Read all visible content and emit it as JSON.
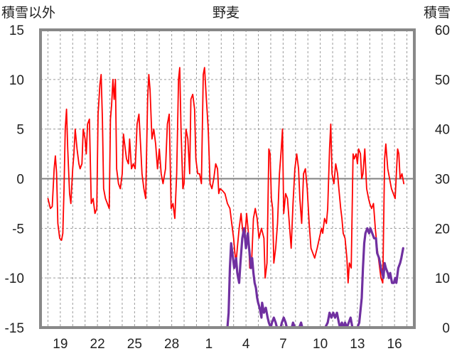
{
  "chart_data": {
    "type": "line",
    "title": "野麦",
    "left_axis_label": "積雪以外",
    "right_axis_label": "積雪",
    "left_ylim": [
      -15,
      15
    ],
    "left_yticks": [
      15,
      10,
      5,
      0,
      -5,
      -10,
      -15
    ],
    "right_ylim": [
      0,
      60
    ],
    "right_yticks": [
      60,
      50,
      40,
      30,
      20,
      10,
      0
    ],
    "x_ticks": [
      {
        "day": 1,
        "label": "19"
      },
      {
        "day": 4,
        "label": "22"
      },
      {
        "day": 7,
        "label": "25"
      },
      {
        "day": 10,
        "label": "28"
      },
      {
        "day": 13,
        "label": "1"
      },
      {
        "day": 16,
        "label": "4"
      },
      {
        "day": 19,
        "label": "7"
      },
      {
        "day": 22,
        "label": "10"
      },
      {
        "day": 25,
        "label": "13"
      },
      {
        "day": 28,
        "label": "16"
      }
    ],
    "xlim": [
      -0.6,
      29.6
    ],
    "grid": "vertical dashed daily, horizontal dashed at left ticks",
    "series": [
      {
        "axis": "left",
        "color": "#ff0000",
        "points": [
          [
            0.0,
            -2.0
          ],
          [
            0.2,
            -3.0
          ],
          [
            0.35,
            -2.8
          ],
          [
            0.5,
            1.0
          ],
          [
            0.6,
            2.3
          ],
          [
            0.7,
            0.6
          ],
          [
            0.8,
            -4.5
          ],
          [
            0.95,
            -6.0
          ],
          [
            1.1,
            -6.2
          ],
          [
            1.2,
            -5.5
          ],
          [
            1.3,
            -1.0
          ],
          [
            1.4,
            5.0
          ],
          [
            1.5,
            7.0
          ],
          [
            1.6,
            3.0
          ],
          [
            1.75,
            -1.5
          ],
          [
            1.85,
            -2.5
          ],
          [
            2.0,
            1.0
          ],
          [
            2.1,
            2.5
          ],
          [
            2.2,
            5.0
          ],
          [
            2.35,
            3.0
          ],
          [
            2.5,
            1.5
          ],
          [
            2.6,
            1.0
          ],
          [
            2.75,
            1.5
          ],
          [
            2.85,
            5.0
          ],
          [
            3.0,
            4.0
          ],
          [
            3.1,
            2.5
          ],
          [
            3.2,
            5.5
          ],
          [
            3.35,
            6.0
          ],
          [
            3.5,
            -2.5
          ],
          [
            3.65,
            -2.0
          ],
          [
            3.8,
            -3.5
          ],
          [
            3.95,
            -3.0
          ],
          [
            4.05,
            6.5
          ],
          [
            4.2,
            9.5
          ],
          [
            4.3,
            10.5
          ],
          [
            4.4,
            6.0
          ],
          [
            4.5,
            -1.0
          ],
          [
            4.65,
            -2.0
          ],
          [
            4.8,
            -2.5
          ],
          [
            4.95,
            -3.0
          ],
          [
            5.05,
            6.0
          ],
          [
            5.15,
            7.5
          ],
          [
            5.25,
            10.0
          ],
          [
            5.35,
            8.0
          ],
          [
            5.45,
            10.0
          ],
          [
            5.55,
            1.0
          ],
          [
            5.7,
            -0.5
          ],
          [
            5.85,
            -1.0
          ],
          [
            6.0,
            0.5
          ],
          [
            6.1,
            4.5
          ],
          [
            6.2,
            3.5
          ],
          [
            6.35,
            2.0
          ],
          [
            6.5,
            1.5
          ],
          [
            6.6,
            4.0
          ],
          [
            6.75,
            1.0
          ],
          [
            6.9,
            1.5
          ],
          [
            7.05,
            1.0
          ],
          [
            7.2,
            5.5
          ],
          [
            7.35,
            6.5
          ],
          [
            7.5,
            3.0
          ],
          [
            7.6,
            0.5
          ],
          [
            7.75,
            -1.0
          ],
          [
            7.9,
            -2.0
          ],
          [
            8.05,
            8.0
          ],
          [
            8.15,
            10.5
          ],
          [
            8.25,
            9.0
          ],
          [
            8.4,
            4.0
          ],
          [
            8.55,
            5.0
          ],
          [
            8.7,
            3.5
          ],
          [
            8.85,
            1.0
          ],
          [
            9.0,
            3.0
          ],
          [
            9.15,
            0.5
          ],
          [
            9.3,
            -0.5
          ],
          [
            9.5,
            1.0
          ],
          [
            9.65,
            5.5
          ],
          [
            9.8,
            6.5
          ],
          [
            9.95,
            -3.0
          ],
          [
            10.1,
            -2.5
          ],
          [
            10.25,
            -4.0
          ],
          [
            10.4,
            0.5
          ],
          [
            10.55,
            10.0
          ],
          [
            10.65,
            11.2
          ],
          [
            10.75,
            5.0
          ],
          [
            10.9,
            -1.0
          ],
          [
            11.0,
            -0.5
          ],
          [
            11.15,
            5.0
          ],
          [
            11.3,
            4.0
          ],
          [
            11.45,
            0.5
          ],
          [
            11.55,
            8.0
          ],
          [
            11.7,
            8.5
          ],
          [
            11.85,
            7.0
          ],
          [
            11.95,
            2.0
          ],
          [
            12.1,
            0.5
          ],
          [
            12.25,
            0.5
          ],
          [
            12.4,
            -0.5
          ],
          [
            12.55,
            10.5
          ],
          [
            12.65,
            11.2
          ],
          [
            12.8,
            8.0
          ],
          [
            12.95,
            5.0
          ],
          [
            13.1,
            -0.5
          ],
          [
            13.25,
            -1.0
          ],
          [
            13.4,
            0.0
          ],
          [
            13.55,
            1.5
          ],
          [
            13.7,
            1.0
          ],
          [
            13.8,
            -1.5
          ],
          [
            13.9,
            -1.0
          ],
          [
            14.1,
            -1.2
          ],
          [
            14.3,
            -1.5
          ],
          [
            14.5,
            -2.5
          ],
          [
            14.7,
            -3.0
          ],
          [
            14.85,
            -4.5
          ],
          [
            15.0,
            -6.0
          ],
          [
            15.1,
            -7.5
          ],
          [
            15.2,
            -8.5
          ],
          [
            15.3,
            -7.0
          ],
          [
            15.45,
            -5.0
          ],
          [
            15.6,
            -3.5
          ],
          [
            15.75,
            -5.5
          ],
          [
            15.9,
            -6.0
          ],
          [
            16.05,
            -3.5
          ],
          [
            16.2,
            -5.5
          ],
          [
            16.3,
            -9.0
          ],
          [
            16.45,
            -8.5
          ],
          [
            16.6,
            -4.0
          ],
          [
            16.75,
            -3.0
          ],
          [
            16.9,
            -4.0
          ],
          [
            17.05,
            -6.0
          ],
          [
            17.25,
            -5.0
          ],
          [
            17.45,
            -6.0
          ],
          [
            17.55,
            -10.0
          ],
          [
            17.7,
            -8.5
          ],
          [
            17.85,
            3.0
          ],
          [
            17.95,
            2.5
          ],
          [
            18.05,
            -2.0
          ],
          [
            18.15,
            -3.0
          ],
          [
            18.25,
            -8.5
          ],
          [
            18.4,
            -7.0
          ],
          [
            18.55,
            -4.5
          ],
          [
            18.7,
            0.5
          ],
          [
            18.85,
            3.0
          ],
          [
            18.95,
            5.0
          ],
          [
            19.05,
            -3.5
          ],
          [
            19.2,
            -1.5
          ],
          [
            19.35,
            -2.0
          ],
          [
            19.5,
            -4.5
          ],
          [
            19.65,
            -7.0
          ],
          [
            19.8,
            -2.5
          ],
          [
            19.95,
            1.0
          ],
          [
            20.1,
            2.5
          ],
          [
            20.25,
            1.0
          ],
          [
            20.35,
            -2.0
          ],
          [
            20.5,
            -4.5
          ],
          [
            20.65,
            0.5
          ],
          [
            20.8,
            1.0
          ],
          [
            20.95,
            -1.0
          ],
          [
            21.1,
            -4.5
          ],
          [
            21.25,
            -7.0
          ],
          [
            21.4,
            -7.5
          ],
          [
            21.55,
            -8.0
          ],
          [
            21.65,
            -7.5
          ],
          [
            21.75,
            -7.0
          ],
          [
            22.1,
            -5.0
          ],
          [
            22.2,
            -5.5
          ],
          [
            22.35,
            -4.0
          ],
          [
            22.5,
            -4.5
          ],
          [
            22.6,
            -3.0
          ],
          [
            22.75,
            3.0
          ],
          [
            22.85,
            5.5
          ],
          [
            22.95,
            0.5
          ],
          [
            23.1,
            -0.5
          ],
          [
            23.25,
            1.5
          ],
          [
            23.4,
            0.5
          ],
          [
            23.5,
            -1.0
          ],
          [
            23.65,
            -3.0
          ],
          [
            23.75,
            -4.0
          ],
          [
            23.85,
            -5.5
          ],
          [
            24.0,
            -6.0
          ],
          [
            24.15,
            -8.0
          ],
          [
            24.25,
            -10.5
          ],
          [
            24.35,
            -8.5
          ],
          [
            24.5,
            -9.0
          ],
          [
            24.65,
            2.5
          ],
          [
            24.75,
            2.0
          ],
          [
            24.9,
            2.5
          ],
          [
            25.0,
            1.5
          ],
          [
            25.1,
            3.0
          ],
          [
            25.25,
            2.5
          ],
          [
            25.35,
            0.0
          ],
          [
            25.45,
            0.5
          ],
          [
            25.6,
            3.0
          ],
          [
            25.75,
            -1.0
          ],
          [
            25.9,
            -2.0
          ],
          [
            26.0,
            -2.5
          ],
          [
            26.15,
            -3.0
          ],
          [
            26.3,
            -2.5
          ],
          [
            26.45,
            -5.0
          ],
          [
            26.6,
            -7.0
          ],
          [
            26.75,
            -8.5
          ],
          [
            26.9,
            -10.0
          ],
          [
            27.05,
            -10.5
          ],
          [
            27.2,
            2.0
          ],
          [
            27.3,
            3.5
          ],
          [
            27.45,
            1.0
          ],
          [
            27.6,
            0.0
          ],
          [
            27.75,
            -1.0
          ],
          [
            27.9,
            -1.5
          ],
          [
            28.05,
            -2.0
          ],
          [
            28.15,
            0.5
          ],
          [
            28.25,
            3.0
          ],
          [
            28.35,
            2.5
          ],
          [
            28.45,
            0.0
          ],
          [
            28.6,
            0.5
          ],
          [
            28.75,
            -0.5
          ]
        ]
      },
      {
        "axis": "right",
        "color": "#7030a0",
        "points": [
          [
            0.0,
            0
          ],
          [
            14.5,
            0
          ],
          [
            14.6,
            3
          ],
          [
            14.7,
            12
          ],
          [
            14.8,
            17
          ],
          [
            14.9,
            15
          ],
          [
            15.05,
            12
          ],
          [
            15.2,
            14
          ],
          [
            15.3,
            11
          ],
          [
            15.45,
            9
          ],
          [
            15.55,
            13
          ],
          [
            15.7,
            18
          ],
          [
            15.85,
            20
          ],
          [
            16.0,
            16
          ],
          [
            16.15,
            19
          ],
          [
            16.25,
            16
          ],
          [
            16.4,
            12
          ],
          [
            16.5,
            14
          ],
          [
            16.6,
            11
          ],
          [
            16.7,
            9
          ],
          [
            16.8,
            8
          ],
          [
            16.9,
            6
          ],
          [
            16.98,
            5
          ],
          [
            17.1,
            4
          ],
          [
            17.25,
            2
          ],
          [
            17.3,
            5
          ],
          [
            17.45,
            3
          ],
          [
            17.6,
            4
          ],
          [
            17.75,
            2
          ],
          [
            17.85,
            1
          ],
          [
            18.0,
            0
          ],
          [
            18.1,
            1
          ],
          [
            18.25,
            2
          ],
          [
            18.4,
            1
          ],
          [
            18.5,
            0
          ],
          [
            18.8,
            0
          ],
          [
            18.9,
            1
          ],
          [
            19.05,
            2
          ],
          [
            19.2,
            1
          ],
          [
            19.3,
            0
          ],
          [
            19.7,
            0
          ],
          [
            19.8,
            1
          ],
          [
            19.95,
            0
          ],
          [
            20.3,
            0
          ],
          [
            20.45,
            1
          ],
          [
            20.55,
            0
          ],
          [
            21.5,
            0
          ],
          [
            22.4,
            0
          ],
          [
            22.6,
            1
          ],
          [
            22.75,
            3
          ],
          [
            22.9,
            2
          ],
          [
            23.05,
            3
          ],
          [
            23.2,
            2
          ],
          [
            23.35,
            3
          ],
          [
            23.5,
            1
          ],
          [
            23.6,
            0
          ],
          [
            23.75,
            1
          ],
          [
            23.85,
            0
          ],
          [
            24.0,
            1
          ],
          [
            24.15,
            0
          ],
          [
            24.3,
            1
          ],
          [
            24.45,
            2
          ],
          [
            24.6,
            0
          ],
          [
            25.0,
            0
          ],
          [
            25.15,
            1
          ],
          [
            25.35,
            6
          ],
          [
            25.45,
            12
          ],
          [
            25.55,
            17
          ],
          [
            25.65,
            19
          ],
          [
            25.8,
            20
          ],
          [
            25.95,
            19
          ],
          [
            26.05,
            20
          ],
          [
            26.2,
            19
          ],
          [
            26.35,
            18
          ],
          [
            26.5,
            18
          ],
          [
            26.6,
            15
          ],
          [
            26.75,
            14
          ],
          [
            26.9,
            12
          ],
          [
            27.0,
            11
          ],
          [
            27.1,
            10
          ],
          [
            27.2,
            13
          ],
          [
            27.3,
            12
          ],
          [
            27.45,
            11
          ],
          [
            27.55,
            10
          ],
          [
            27.65,
            11
          ],
          [
            27.8,
            9
          ],
          [
            27.95,
            9
          ],
          [
            28.05,
            10
          ],
          [
            28.15,
            9
          ],
          [
            28.3,
            12
          ],
          [
            28.45,
            13
          ],
          [
            28.55,
            14
          ],
          [
            28.7,
            16
          ]
        ]
      }
    ]
  }
}
